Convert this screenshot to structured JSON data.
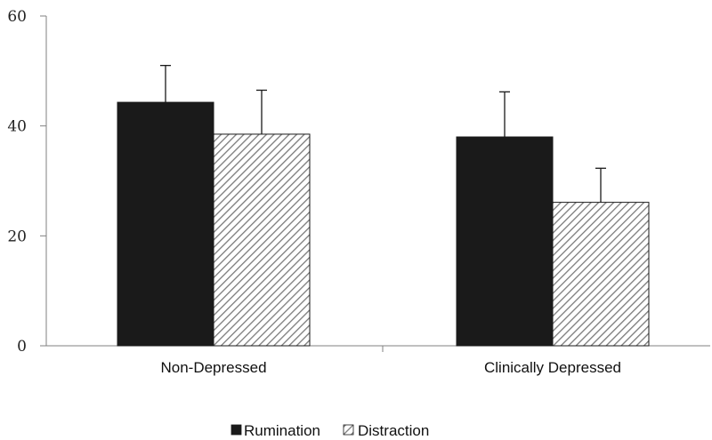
{
  "chart_data": {
    "type": "bar",
    "categories": [
      "Non-Depressed",
      "Clinically Depressed"
    ],
    "series": [
      {
        "name": "Rumination",
        "values": [
          44.3,
          38.0
        ],
        "error_upper": [
          51.0,
          46.2
        ],
        "color": "#1a1a1a",
        "fill": "solid"
      },
      {
        "name": "Distraction",
        "values": [
          38.5,
          26.1
        ],
        "error_upper": [
          46.5,
          32.3
        ],
        "color": "#7a7a7a",
        "fill": "diagonal-hatch"
      }
    ],
    "yticks": [
      "0",
      "20",
      "40",
      "60"
    ],
    "ylim": [
      0,
      60
    ],
    "title": "",
    "xlabel": "",
    "ylabel": "",
    "grid": false,
    "legend": "bottom-center"
  }
}
